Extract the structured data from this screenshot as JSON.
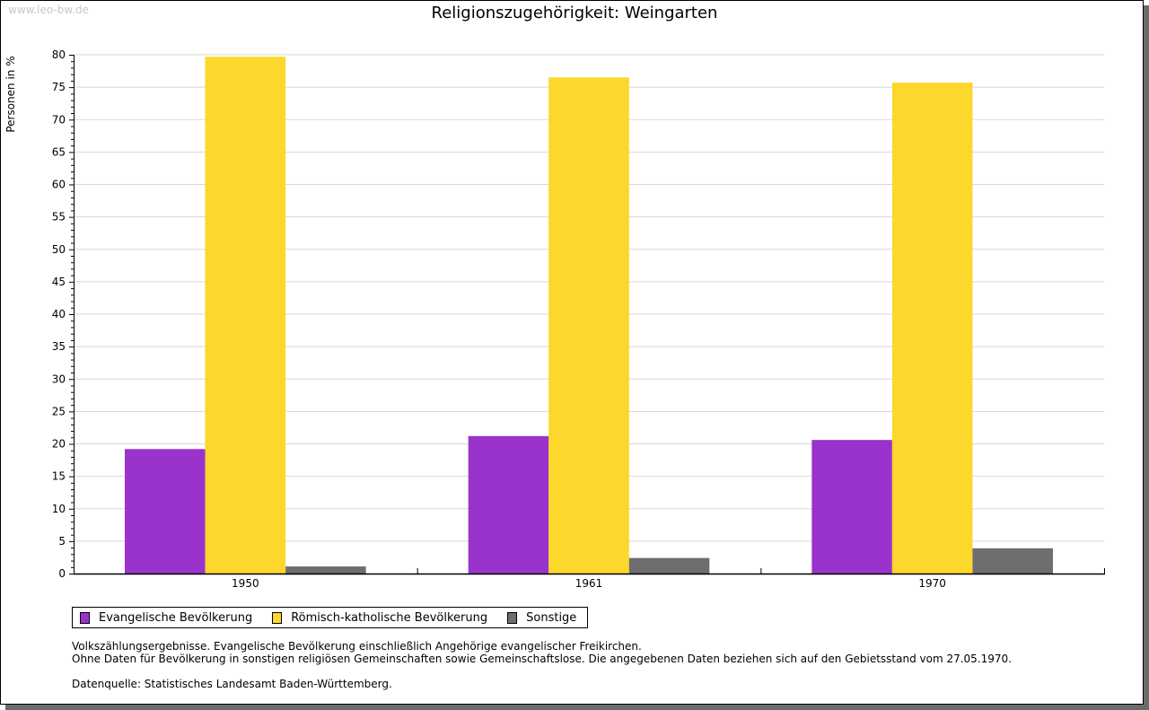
{
  "watermark": "www.leo-bw.de",
  "chart_data": {
    "type": "bar",
    "title": "Religionszugehörigkeit: Weingarten",
    "xlabel": "",
    "ylabel": "Personen in %",
    "ylim": [
      0,
      80
    ],
    "yticks": [
      0,
      5,
      10,
      15,
      20,
      25,
      30,
      35,
      40,
      45,
      50,
      55,
      60,
      65,
      70,
      75,
      80
    ],
    "grid": true,
    "legend_position": "bottom-left",
    "categories": [
      "1950",
      "1961",
      "1970"
    ],
    "series": [
      {
        "name": "Evangelische Bevölkerung",
        "color": "#9933cc",
        "values": [
          19.2,
          21.2,
          20.6
        ]
      },
      {
        "name": "Römisch-katholische Bevölkerung",
        "color": "#fcd72c",
        "values": [
          79.7,
          76.5,
          75.7
        ]
      },
      {
        "name": "Sonstige",
        "color": "#6e6e6e",
        "values": [
          1.1,
          2.4,
          3.9
        ]
      }
    ]
  },
  "notes": [
    "Volkszählungsergebnisse. Evangelische Bevölkerung einschließlich Angehörige evangelischer Freikirchen.",
    "Ohne Daten für Bevölkerung in sonstigen religiösen Gemeinschaften sowie Gemeinschaftslose. Die angegebenen Daten beziehen sich auf den Gebietsstand vom 27.05.1970.",
    "Datenquelle: Statistisches Landesamt Baden-Württemberg."
  ]
}
